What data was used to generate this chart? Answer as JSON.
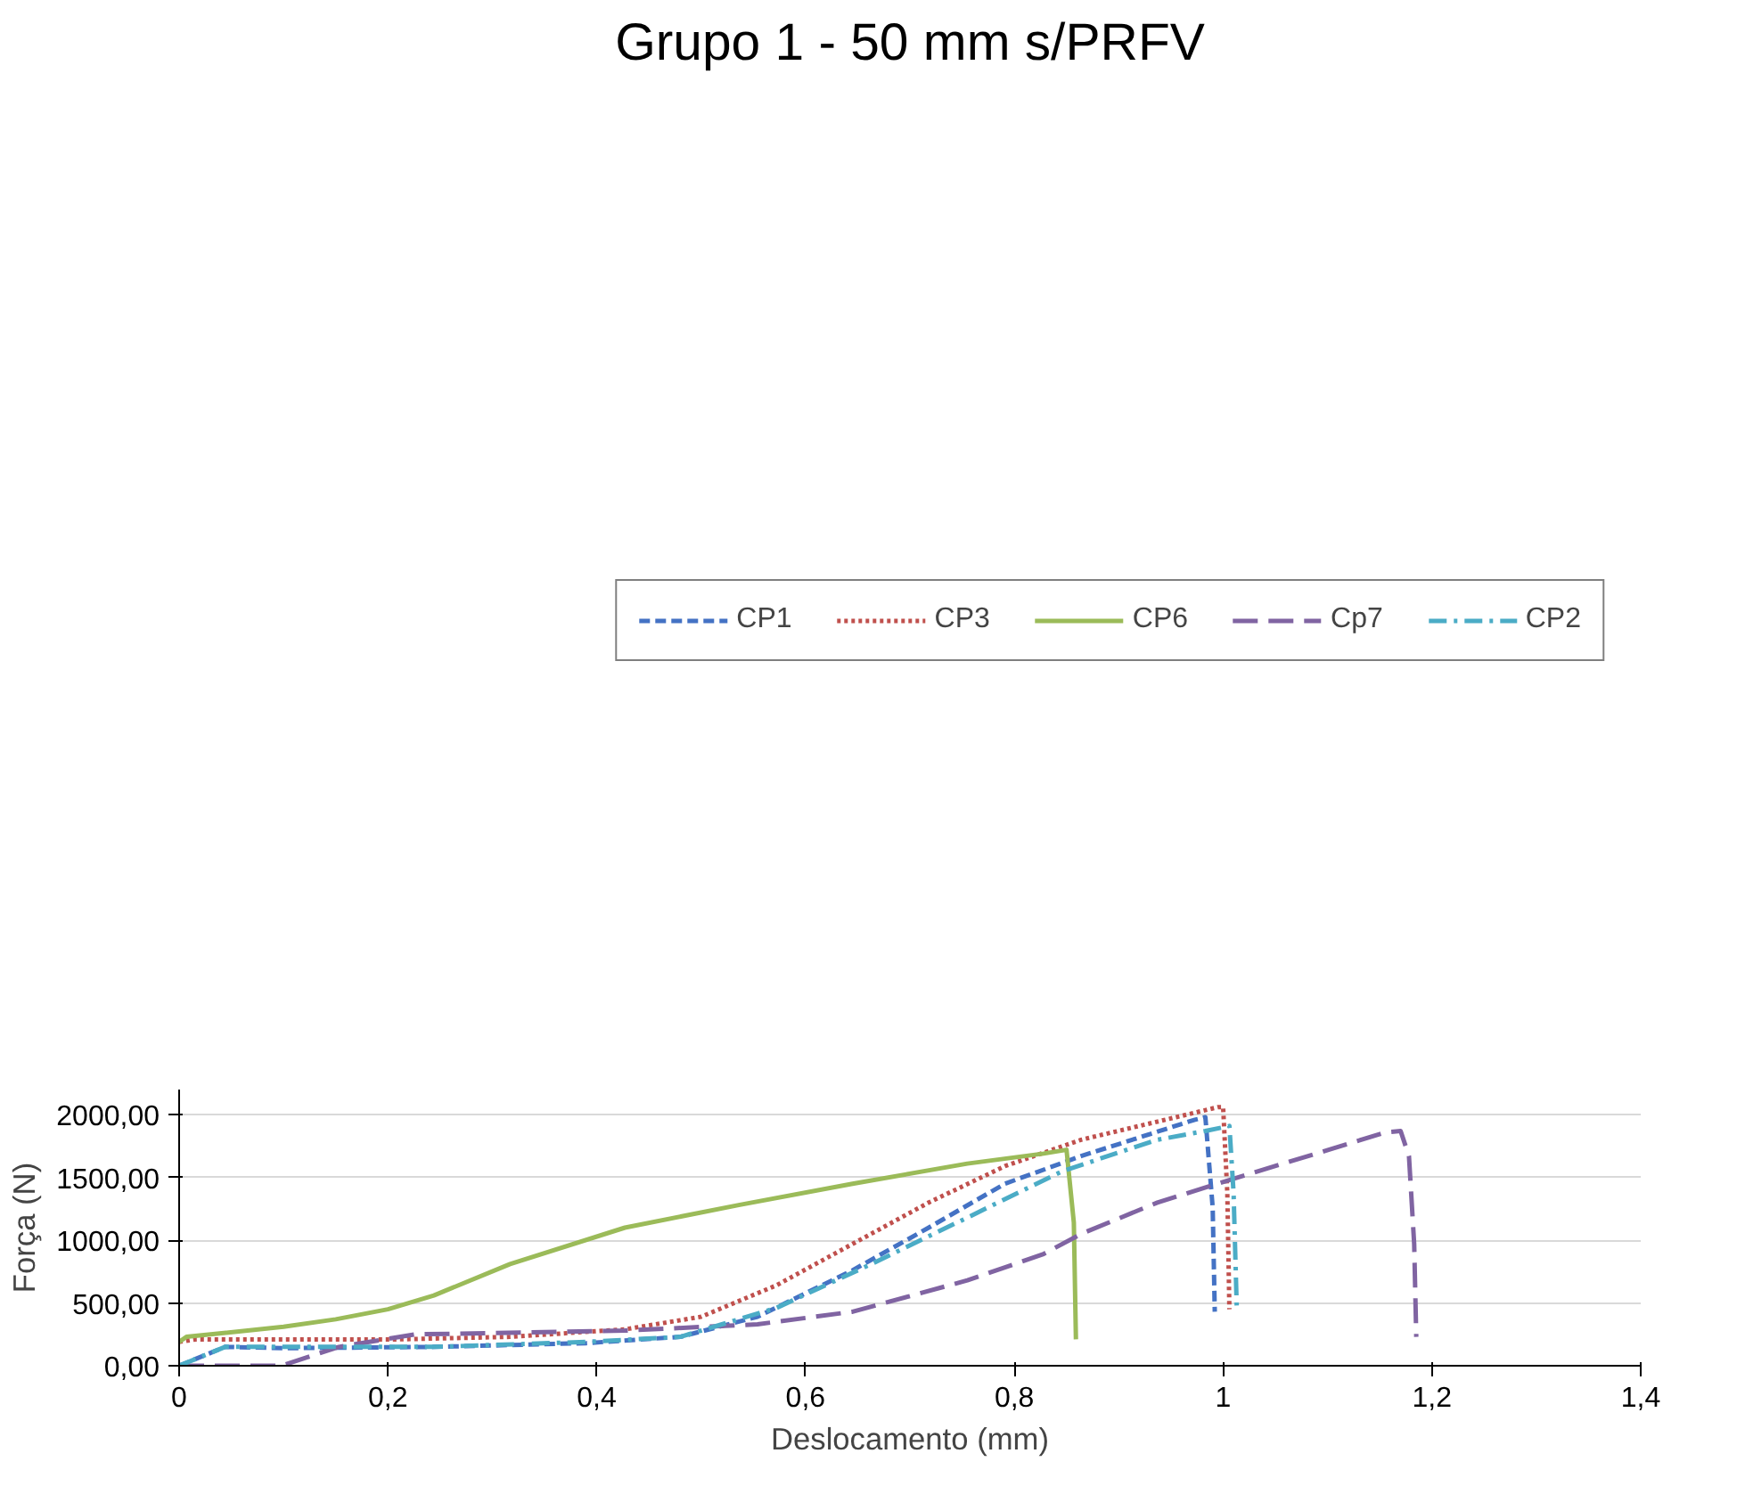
{
  "chart_data": {
    "type": "line",
    "title": "Grupo 1 - 50 mm s/PRFV",
    "xlabel": "Deslocamento (mm)",
    "ylabel": "Força (N)",
    "xlim": [
      0,
      1.4
    ],
    "ylim": [
      0,
      2200
    ],
    "xticks": [
      0,
      {
        "value": 0.2,
        "label": "0,2"
      },
      {
        "value": 0.4,
        "label": "0,4"
      },
      {
        "value": 0.6,
        "label": "0,6"
      },
      {
        "value": 0.8,
        "label": "0,8"
      },
      1,
      {
        "value": 1.2,
        "label": "1,2"
      },
      {
        "value": 1.4,
        "label": "1,4"
      }
    ],
    "yticks": [
      {
        "value": 0,
        "label": "0,00"
      },
      {
        "value": 500,
        "label": "500,00"
      },
      {
        "value": 1000,
        "label": "1000,00"
      },
      {
        "value": 1500,
        "label": "1500,00"
      },
      {
        "value": 2000,
        "label": "2000,00"
      }
    ],
    "grid": "y",
    "legend": "top",
    "marker": "none",
    "series": [
      {
        "name": "CP1",
        "color": "#4472c4",
        "line_style": "dashed",
        "x": [
          0,
          0.044,
          0.1,
          0.244,
          0.39,
          0.48,
          0.554,
          0.645,
          0.718,
          0.791,
          0.864,
          0.973,
          0.983,
          0.99,
          0.992
        ],
        "values": [
          0,
          150,
          140,
          150,
          180,
          230,
          390,
          760,
          1100,
          1450,
          1670,
          1960,
          1980,
          1260,
          430
        ]
      },
      {
        "name": "CP3",
        "color": "#c0504d",
        "line_style": "dotted",
        "x": [
          0,
          0.016,
          0.208,
          0.317,
          0.427,
          0.5,
          0.572,
          0.645,
          0.718,
          0.791,
          0.864,
          0.955,
          0.995,
          1.0,
          1.004,
          1.006
        ],
        "values": [
          190,
          210,
          210,
          230,
          290,
          390,
          640,
          970,
          1300,
          1590,
          1800,
          1980,
          2060,
          2060,
          1380,
          450
        ]
      },
      {
        "name": "CP6",
        "color": "#9bbb59",
        "line_style": "solid",
        "x": [
          0,
          0.007,
          0.1,
          0.15,
          0.2,
          0.244,
          0.317,
          0.427,
          0.536,
          0.645,
          0.755,
          0.828,
          0.85,
          0.857,
          0.859
        ],
        "values": [
          190,
          230,
          310,
          370,
          450,
          560,
          810,
          1100,
          1280,
          1450,
          1610,
          1690,
          1720,
          1140,
          210
        ]
      },
      {
        "name": "Cp7",
        "color": "#8064a2",
        "line_style": "longdash",
        "x": [
          0,
          0.098,
          0.153,
          0.226,
          0.299,
          0.427,
          0.554,
          0.645,
          0.755,
          0.828,
          0.864,
          0.937,
          1.01,
          1.101,
          1.156,
          1.17,
          1.178,
          1.183,
          1.185
        ],
        "values": [
          0,
          0,
          150,
          250,
          260,
          280,
          330,
          430,
          680,
          890,
          1050,
          1300,
          1490,
          1720,
          1860,
          1870,
          1670,
          970,
          230
        ]
      },
      {
        "name": "CP2",
        "color": "#4bacc6",
        "line_style": "dashdot",
        "x": [
          0,
          0.044,
          0.244,
          0.39,
          0.48,
          0.572,
          0.663,
          0.755,
          0.846,
          0.937,
          0.983,
          1.006,
          1.01,
          1.013
        ],
        "values": [
          0,
          150,
          150,
          190,
          230,
          460,
          810,
          1180,
          1550,
          1800,
          1870,
          1910,
          1380,
          480
        ]
      }
    ]
  }
}
